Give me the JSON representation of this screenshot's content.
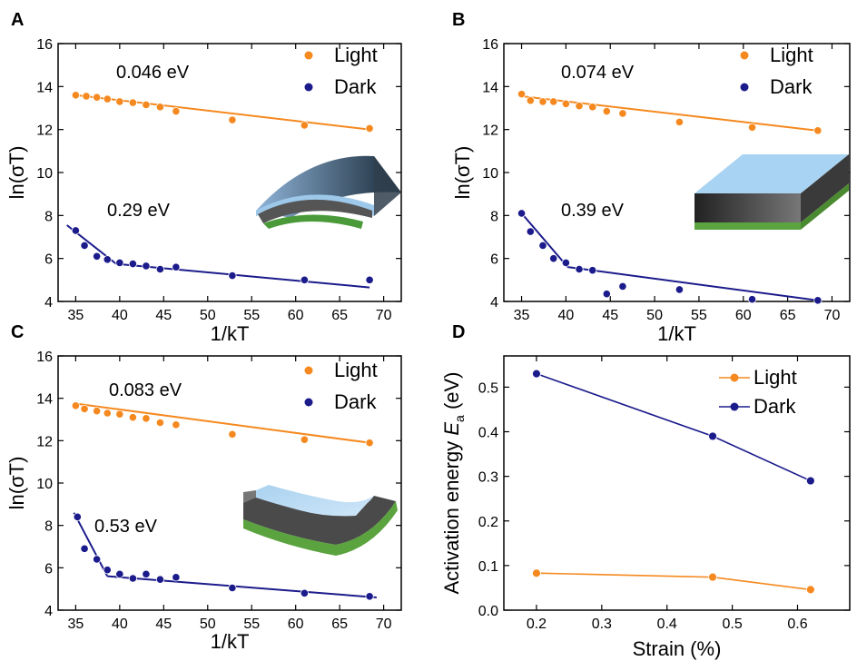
{
  "colors": {
    "light": "#F5891F",
    "dark": "#1B1B8C",
    "axis": "#000000"
  },
  "chart_data": [
    {
      "panel": "A",
      "type": "scatter",
      "xlabel": "1/kT",
      "ylabel": "ln(σT)",
      "xlim": [
        33,
        72
      ],
      "ylim": [
        4,
        16
      ],
      "xticks": [
        35,
        40,
        45,
        50,
        55,
        60,
        65,
        70
      ],
      "yticks": [
        4,
        6,
        8,
        10,
        12,
        14,
        16
      ],
      "legend": "top-right",
      "inset": "bent-arc-device-icon",
      "annotations": [
        "0.046 eV",
        "0.29 eV"
      ],
      "series": [
        {
          "name": "Light",
          "points": [
            [
              35,
              13.6
            ],
            [
              36.2,
              13.55
            ],
            [
              37.4,
              13.5
            ],
            [
              38.6,
              13.42
            ],
            [
              40,
              13.3
            ],
            [
              41.5,
              13.25
            ],
            [
              43,
              13.15
            ],
            [
              44.6,
              13.05
            ],
            [
              46.4,
              12.85
            ],
            [
              52.8,
              12.45
            ],
            [
              61,
              12.2
            ],
            [
              68.4,
              12.05
            ]
          ],
          "fit": [
            [
              [
                35,
                13.6
              ],
              [
                68.4,
                12.0
              ]
            ]
          ]
        },
        {
          "name": "Dark",
          "points": [
            [
              35,
              7.3
            ],
            [
              36,
              6.6
            ],
            [
              37.4,
              6.1
            ],
            [
              38.6,
              5.95
            ],
            [
              40,
              5.8
            ],
            [
              41.5,
              5.75
            ],
            [
              43,
              5.65
            ],
            [
              44.6,
              5.5
            ],
            [
              46.4,
              5.6
            ],
            [
              52.8,
              5.2
            ],
            [
              61,
              5.0
            ],
            [
              68.4,
              5.0
            ]
          ],
          "fit": [
            [
              [
                34,
                7.55
              ],
              [
                39.6,
                5.75
              ]
            ],
            [
              [
                39.6,
                5.75
              ],
              [
                68.4,
                4.65
              ]
            ]
          ]
        }
      ]
    },
    {
      "panel": "B",
      "type": "scatter",
      "xlabel": "1/kT",
      "ylabel": "ln(σT)",
      "xlim": [
        33,
        72
      ],
      "ylim": [
        4,
        16
      ],
      "xticks": [
        35,
        40,
        45,
        50,
        55,
        60,
        65,
        70
      ],
      "yticks": [
        4,
        6,
        8,
        10,
        12,
        14,
        16
      ],
      "legend": "top-right",
      "inset": "flat-slab-device-icon",
      "annotations": [
        "0.074 eV",
        "0.39 eV"
      ],
      "series": [
        {
          "name": "Light",
          "points": [
            [
              35,
              13.65
            ],
            [
              36,
              13.35
            ],
            [
              37.4,
              13.3
            ],
            [
              38.6,
              13.3
            ],
            [
              40,
              13.2
            ],
            [
              41.5,
              13.1
            ],
            [
              43,
              13.05
            ],
            [
              44.6,
              12.85
            ],
            [
              46.4,
              12.75
            ],
            [
              52.8,
              12.35
            ],
            [
              61,
              12.1
            ],
            [
              68.4,
              11.95
            ]
          ],
          "fit": [
            [
              [
                35,
                13.55
              ],
              [
                68.4,
                11.95
              ]
            ]
          ]
        },
        {
          "name": "Dark",
          "points": [
            [
              35,
              8.1
            ],
            [
              36,
              7.25
            ],
            [
              37.4,
              6.6
            ],
            [
              38.6,
              6.0
            ],
            [
              40,
              5.8
            ],
            [
              41.5,
              5.5
            ],
            [
              43,
              5.45
            ],
            [
              44.6,
              4.35
            ],
            [
              46.4,
              4.7
            ],
            [
              52.8,
              4.55
            ],
            [
              61,
              4.1
            ],
            [
              68.4,
              4.05
            ]
          ],
          "fit": [
            [
              [
                34.8,
                8.2
              ],
              [
                40.2,
                5.6
              ]
            ],
            [
              [
                40.2,
                5.6
              ],
              [
                68.4,
                4.05
              ]
            ]
          ]
        }
      ]
    },
    {
      "panel": "C",
      "type": "scatter",
      "xlabel": "1/kT",
      "ylabel": "ln(σT)",
      "xlim": [
        33,
        72
      ],
      "ylim": [
        4,
        16
      ],
      "xticks": [
        35,
        40,
        45,
        50,
        55,
        60,
        65,
        70
      ],
      "yticks": [
        4,
        6,
        8,
        10,
        12,
        14,
        16
      ],
      "legend": "top-right",
      "inset": "concave-curved-device-icon",
      "annotations": [
        "0.083 eV",
        "0.53 eV"
      ],
      "series": [
        {
          "name": "Light",
          "points": [
            [
              35,
              13.65
            ],
            [
              36,
              13.5
            ],
            [
              37.4,
              13.4
            ],
            [
              38.6,
              13.3
            ],
            [
              40,
              13.25
            ],
            [
              41.5,
              13.1
            ],
            [
              43,
              13.05
            ],
            [
              44.6,
              12.85
            ],
            [
              46.4,
              12.75
            ],
            [
              52.8,
              12.3
            ],
            [
              61,
              12.05
            ],
            [
              68.4,
              11.9
            ]
          ],
          "fit": [
            [
              [
                35,
                13.75
              ],
              [
                68.4,
                11.9
              ]
            ]
          ]
        },
        {
          "name": "Dark",
          "points": [
            [
              35.2,
              8.4
            ],
            [
              36,
              6.9
            ],
            [
              37.4,
              6.4
            ],
            [
              38.6,
              5.9
            ],
            [
              40,
              5.7
            ],
            [
              41.5,
              5.5
            ],
            [
              43,
              5.7
            ],
            [
              44.6,
              5.45
            ],
            [
              46.4,
              5.55
            ],
            [
              52.8,
              5.05
            ],
            [
              61,
              4.8
            ],
            [
              68.4,
              4.65
            ]
          ],
          "fit": [
            [
              [
                34.8,
                8.6
              ],
              [
                38.6,
                5.6
              ]
            ],
            [
              [
                38.6,
                5.6
              ],
              [
                69.2,
                4.6
              ]
            ]
          ]
        }
      ]
    },
    {
      "panel": "D",
      "type": "line",
      "xlabel": "Strain (%)",
      "ylabel": "Activation energy Ea (eV)",
      "ylabel_main": "Activation energy ",
      "ylabel_symbol": "E",
      "ylabel_sub": "a",
      "ylabel_unit": " (eV)",
      "xlim": [
        0.15,
        0.68
      ],
      "ylim": [
        0.0,
        0.57
      ],
      "xticks": [
        0.2,
        0.3,
        0.4,
        0.5,
        0.6
      ],
      "yticks": [
        0.0,
        0.1,
        0.2,
        0.3,
        0.4,
        0.5
      ],
      "legend": "top-right",
      "series": [
        {
          "name": "Light",
          "x": [
            0.2,
            0.47,
            0.62
          ],
          "y": [
            0.083,
            0.074,
            0.046
          ]
        },
        {
          "name": "Dark",
          "x": [
            0.2,
            0.47,
            0.62
          ],
          "y": [
            0.53,
            0.39,
            0.29
          ]
        }
      ]
    }
  ]
}
